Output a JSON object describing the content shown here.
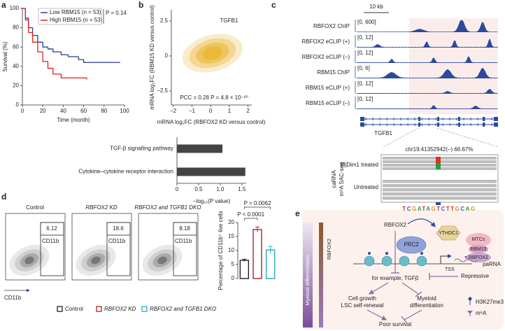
{
  "panel_labels": [
    "a",
    "b",
    "c",
    "d",
    "e"
  ],
  "chart_data": [
    {
      "type": "line",
      "step": true,
      "ylabel": "Survival (%)",
      "xlabel": "Time (month)",
      "annotation": "P = 0.14",
      "xlim": [
        0,
        100
      ],
      "xticks": [
        0,
        20,
        40,
        60,
        80,
        100
      ],
      "ylim": [
        0,
        100
      ],
      "yticks": [
        0,
        20,
        40,
        60,
        80,
        100
      ],
      "series": [
        {
          "name": "Low RBM15 (n = 53)",
          "color": "#2b3a8c",
          "x": [
            0,
            3,
            6,
            10,
            15,
            20,
            25,
            30,
            38,
            45,
            55,
            60,
            95
          ],
          "values": [
            100,
            90,
            80,
            72,
            65,
            60,
            58,
            55,
            52,
            50,
            47,
            44,
            44
          ]
        },
        {
          "name": "High RBM15 (n = 53)",
          "color": "#e0201f",
          "x": [
            0,
            3,
            6,
            10,
            15,
            20,
            25,
            30,
            38,
            63
          ],
          "values": [
            100,
            88,
            75,
            65,
            55,
            45,
            38,
            32,
            28,
            27
          ]
        }
      ]
    },
    {
      "type": "scatter",
      "color": "#e8b32a",
      "xlabel": "mRNA log₂FC (RBFOX2 KD versus control)",
      "ylabel": "mRNA log₂FC (RBM15 KD versus control)",
      "highlight": "TGFB1",
      "annotation": "PCC = 0.28 P = 4.8 × 10⁻²⁰",
      "xlim": [
        -2.1,
        2.2
      ],
      "xticks": [
        {
          "value": -2,
          "label": "−2"
        },
        {
          "value": -1,
          "label": "−1"
        },
        0,
        1,
        2
      ],
      "ylim": [
        -3.5,
        3.3
      ],
      "yticks": [
        {
          "value": -2.5,
          "label": "−2.5"
        },
        0,
        2.5
      ]
    },
    {
      "type": "barh",
      "color": "#444444",
      "xlabel": "−log₁₀(P value)",
      "categories": [
        "TGF-β signalling pathway",
        "Cytokine–cytokine receptor interaction"
      ],
      "values": [
        1.05,
        1.58
      ],
      "xlim": [
        0,
        1.6
      ],
      "xticks": [
        0,
        0.5,
        {
          "value": 1,
          "label": "1.0"
        },
        1.5
      ]
    },
    {
      "type": "bar",
      "ylabel": "Percentage of CD11b⁺ live cells",
      "categories": [
        "Control",
        "RBFOX2 KD",
        "RBFOX2 and TGFB1 DKO"
      ],
      "colors": [
        "#222222",
        "#a8262c",
        "#2fa6b8"
      ],
      "values": [
        6.5,
        17.5,
        10.2
      ],
      "errors": [
        0.4,
        0.9,
        1.3
      ],
      "ylim": [
        0,
        20
      ],
      "yticks": [
        0,
        5,
        10,
        15,
        20
      ],
      "annotations": [
        "P < 0.0001",
        "P = 0.0062"
      ]
    }
  ],
  "tracks": {
    "scale": "10 kb",
    "rows": [
      {
        "name": "RBFOX2 ChIP",
        "range": "[0, 600]"
      },
      {
        "name": "RBFOX2 eCLIP (+)",
        "range": "[0, 12]"
      },
      {
        "name": "RBFOX2 eCLIP (–)",
        "range": "[0, 12]"
      },
      {
        "name": "RBM15 ChIP",
        "range": "[0, 6]"
      },
      {
        "name": "RBM15 eCLIP (+)",
        "range": "[0, 12]"
      },
      {
        "name": "RBM15 eCLIP (–)",
        "range": "[0, 12]"
      }
    ],
    "gene": "TGFB1",
    "locus": "chr19:41352942(–) 66.67%",
    "side_label": [
      "caRNA",
      "m⁶A SAC-seq"
    ],
    "samples": [
      "MjDim1 treated",
      "Untreated"
    ],
    "sequence": "TCGATAGTCTTGCAG"
  },
  "flow": {
    "gates": [
      6.12,
      18.6,
      8.18
    ],
    "gate_label": "CD11b",
    "axis_label": "CD11b"
  },
  "diagram": {
    "side_axis": "Myeloid differentiation",
    "gradient_label": "RBFOX2",
    "regulator": "RBFOX2",
    "complexes": [
      "PRC2",
      "YTHDC1",
      "MTCs",
      "RBM15",
      "RBFOX2"
    ],
    "rna": "paRNA",
    "tss": "TSS",
    "repressive": "Repressive",
    "target": "for example, TGFβ",
    "outcome_left": [
      "Cell growth",
      "LSC self-renewal"
    ],
    "outcome_right": [
      "Myeloid",
      "differentiation"
    ],
    "result": "Poor survival",
    "legend": [
      "H3K27me3",
      "m⁶A"
    ]
  }
}
